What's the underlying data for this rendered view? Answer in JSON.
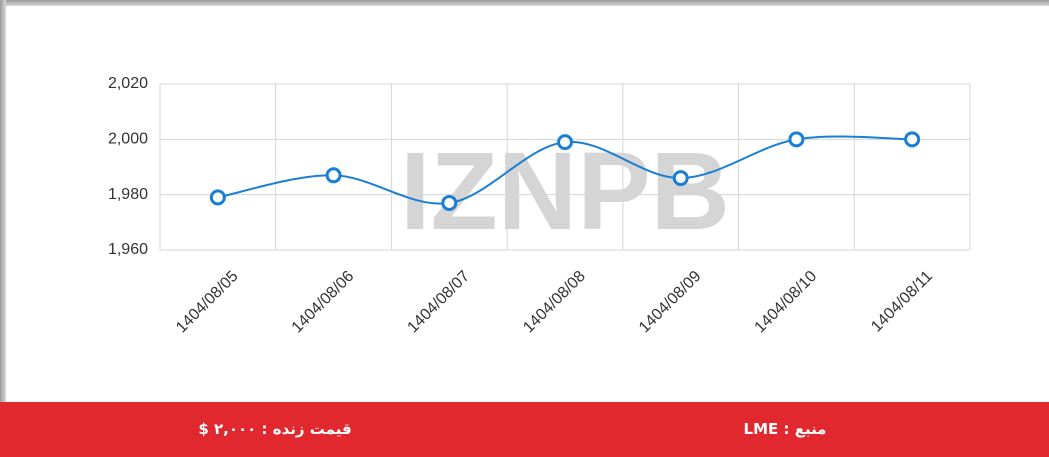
{
  "chart_data": {
    "type": "line",
    "watermark": "IZNPB",
    "categories": [
      "1404/08/05",
      "1404/08/06",
      "1404/08/07",
      "1404/08/08",
      "1404/08/09",
      "1404/08/10",
      "1404/08/11"
    ],
    "series": [
      {
        "color": "#1a7fd4",
        "values": [
          1979,
          1987,
          1977,
          1999,
          1986,
          2000,
          2000
        ]
      }
    ],
    "ylim": [
      1960,
      2020
    ],
    "yticks": [
      {
        "value": 1960,
        "label": "1,960"
      },
      {
        "value": 1980,
        "label": "1,980"
      },
      {
        "value": 2000,
        "label": "2,000"
      },
      {
        "value": 2020,
        "label": "2,020"
      }
    ],
    "grid": true
  },
  "footer": {
    "price": "قیمت زنده : ۲,۰۰۰ $",
    "source": "منبع : LME"
  }
}
